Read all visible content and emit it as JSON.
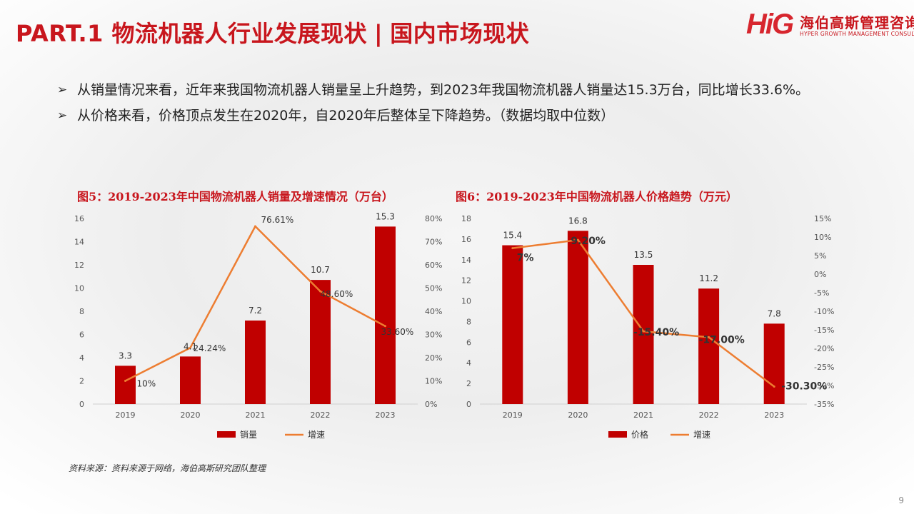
{
  "header": {
    "title_main": "PART.1 物流机器人行业发展现状",
    "title_sep": "|",
    "title_sub": "国内市场现状",
    "logo_mark": "HiG",
    "logo_cn": "海伯高斯管理咨询",
    "logo_en": "HYPER GROWTH MANAGEMENT CONSULTING"
  },
  "bullets": [
    {
      "arrow": "➢",
      "text": "从销量情况来看，近年来我国物流机器人销量呈上升趋势，到2023年我国物流机器人销量达15.3万台，同比增长33.6%。"
    },
    {
      "arrow": "➢",
      "text": "从价格来看，价格顶点发生在2020年，自2020年后整体呈下降趋势。（数据均取中位数）"
    }
  ],
  "chart_data": [
    {
      "type": "bar",
      "title": "图5：2019-2023年中国物流机器人销量及增速情况（万台）",
      "categories": [
        "2019",
        "2020",
        "2021",
        "2022",
        "2023"
      ],
      "series": [
        {
          "name": "销量",
          "type": "bar",
          "axis": "left",
          "values": [
            3.3,
            4.1,
            7.2,
            10.7,
            15.3
          ],
          "labels": [
            "3.3",
            "4.1",
            "7.2",
            "10.7",
            "15.3"
          ],
          "color": "#c00000"
        },
        {
          "name": "增速",
          "type": "line",
          "axis": "right",
          "values": [
            10,
            24.24,
            76.61,
            48.6,
            33.6
          ],
          "labels": [
            "10%",
            "24.24%",
            "76.61%",
            "48.60%",
            "33.60%"
          ],
          "color": "#ed7d31"
        }
      ],
      "left_axis": {
        "min": 0,
        "max": 16,
        "ticks": [
          "0",
          "2",
          "4",
          "6",
          "8",
          "10",
          "12",
          "14",
          "16"
        ]
      },
      "right_axis": {
        "min": 0,
        "max": 80,
        "ticks": [
          "0%",
          "10%",
          "20%",
          "30%",
          "40%",
          "50%",
          "60%",
          "70%",
          "80%"
        ]
      },
      "legend": "bottom",
      "grid": false
    },
    {
      "type": "bar",
      "title": "图6：2019-2023年中国物流机器人价格趋势（万元）",
      "categories": [
        "2019",
        "2020",
        "2021",
        "2022",
        "2023"
      ],
      "series": [
        {
          "name": "价格",
          "type": "bar",
          "axis": "left",
          "values": [
            15.4,
            16.8,
            13.5,
            11.2,
            7.8
          ],
          "labels": [
            "15.4",
            "16.8",
            "13.5",
            "11.2",
            "7.8"
          ],
          "color": "#c00000"
        },
        {
          "name": "增速",
          "type": "line",
          "axis": "right",
          "values": [
            7,
            9.2,
            -15.4,
            -17,
            -30.3
          ],
          "labels": [
            "7%",
            "9.20%",
            "-15.40%",
            "-17.00%",
            "-30.30%"
          ],
          "color": "#ed7d31"
        }
      ],
      "left_axis": {
        "min": 0,
        "max": 18,
        "ticks": [
          "0",
          "2",
          "4",
          "6",
          "8",
          "10",
          "12",
          "14",
          "16",
          "18"
        ]
      },
      "right_axis": {
        "min": -35,
        "max": 15,
        "ticks": [
          "-35%",
          "-30%",
          "-25%",
          "-20%",
          "-15%",
          "-10%",
          "-5%",
          "0%",
          "5%",
          "10%",
          "15%"
        ]
      },
      "legend": "bottom",
      "grid": false
    }
  ],
  "source": "资料来源：资料来源于网络，海伯高斯研究团队整理",
  "page_number": "9"
}
